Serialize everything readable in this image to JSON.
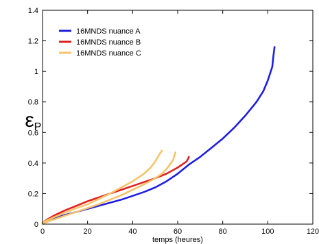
{
  "chart_data": {
    "type": "line",
    "title": "",
    "xlabel": "temps (heures)",
    "ylabel": "ε",
    "ylabel_subscript": "P",
    "xlim": [
      0,
      120
    ],
    "ylim": [
      0,
      1.4
    ],
    "xticks": [
      0,
      20,
      40,
      60,
      80,
      100,
      120
    ],
    "yticks": [
      0,
      0.2,
      0.4,
      0.6,
      0.8,
      1,
      1.2,
      1.4
    ],
    "grid": false,
    "legend_position": "top-left",
    "series": [
      {
        "name": "16MNDS nuance A",
        "color": "#1e1ee0",
        "points": [
          [
            0,
            0
          ],
          [
            2,
            0.02
          ],
          [
            5,
            0.035
          ],
          [
            10,
            0.06
          ],
          [
            15,
            0.08
          ],
          [
            20,
            0.1
          ],
          [
            25,
            0.12
          ],
          [
            30,
            0.14
          ],
          [
            35,
            0.16
          ],
          [
            40,
            0.185
          ],
          [
            45,
            0.21
          ],
          [
            50,
            0.24
          ],
          [
            55,
            0.28
          ],
          [
            60,
            0.33
          ],
          [
            65,
            0.39
          ],
          [
            70,
            0.44
          ],
          [
            75,
            0.5
          ],
          [
            80,
            0.56
          ],
          [
            85,
            0.63
          ],
          [
            90,
            0.71
          ],
          [
            95,
            0.8
          ],
          [
            98,
            0.87
          ],
          [
            100,
            0.94
          ],
          [
            102,
            1.03
          ],
          [
            102.5,
            1.1
          ],
          [
            103,
            1.16
          ]
        ]
      },
      {
        "name": "16MNDS nuance B",
        "color": "#e02020",
        "points": [
          [
            0,
            0.01
          ],
          [
            2,
            0.03
          ],
          [
            5,
            0.055
          ],
          [
            10,
            0.09
          ],
          [
            15,
            0.12
          ],
          [
            20,
            0.15
          ],
          [
            25,
            0.175
          ],
          [
            30,
            0.2
          ],
          [
            35,
            0.225
          ],
          [
            40,
            0.25
          ],
          [
            45,
            0.275
          ],
          [
            50,
            0.3
          ],
          [
            55,
            0.33
          ],
          [
            60,
            0.37
          ],
          [
            64,
            0.41
          ],
          [
            65,
            0.44
          ]
        ]
      },
      {
        "name": "16MNDS nuance C",
        "color": "#f5c36a",
        "lines": [
          [
            [
              0,
              0.01
            ],
            [
              2,
              0.025
            ],
            [
              5,
              0.045
            ],
            [
              10,
              0.075
            ],
            [
              15,
              0.105
            ],
            [
              20,
              0.13
            ],
            [
              25,
              0.165
            ],
            [
              30,
              0.2
            ],
            [
              35,
              0.24
            ],
            [
              40,
              0.28
            ],
            [
              45,
              0.33
            ],
            [
              48,
              0.37
            ],
            [
              50,
              0.41
            ],
            [
              52,
              0.46
            ],
            [
              53,
              0.48
            ]
          ],
          [
            [
              0,
              0
            ],
            [
              2,
              0.015
            ],
            [
              5,
              0.03
            ],
            [
              10,
              0.055
            ],
            [
              15,
              0.08
            ],
            [
              20,
              0.105
            ],
            [
              25,
              0.13
            ],
            [
              30,
              0.16
            ],
            [
              35,
              0.19
            ],
            [
              40,
              0.225
            ],
            [
              45,
              0.26
            ],
            [
              50,
              0.3
            ],
            [
              53,
              0.33
            ],
            [
              55,
              0.36
            ],
            [
              58,
              0.42
            ],
            [
              59,
              0.47
            ]
          ]
        ]
      }
    ]
  }
}
